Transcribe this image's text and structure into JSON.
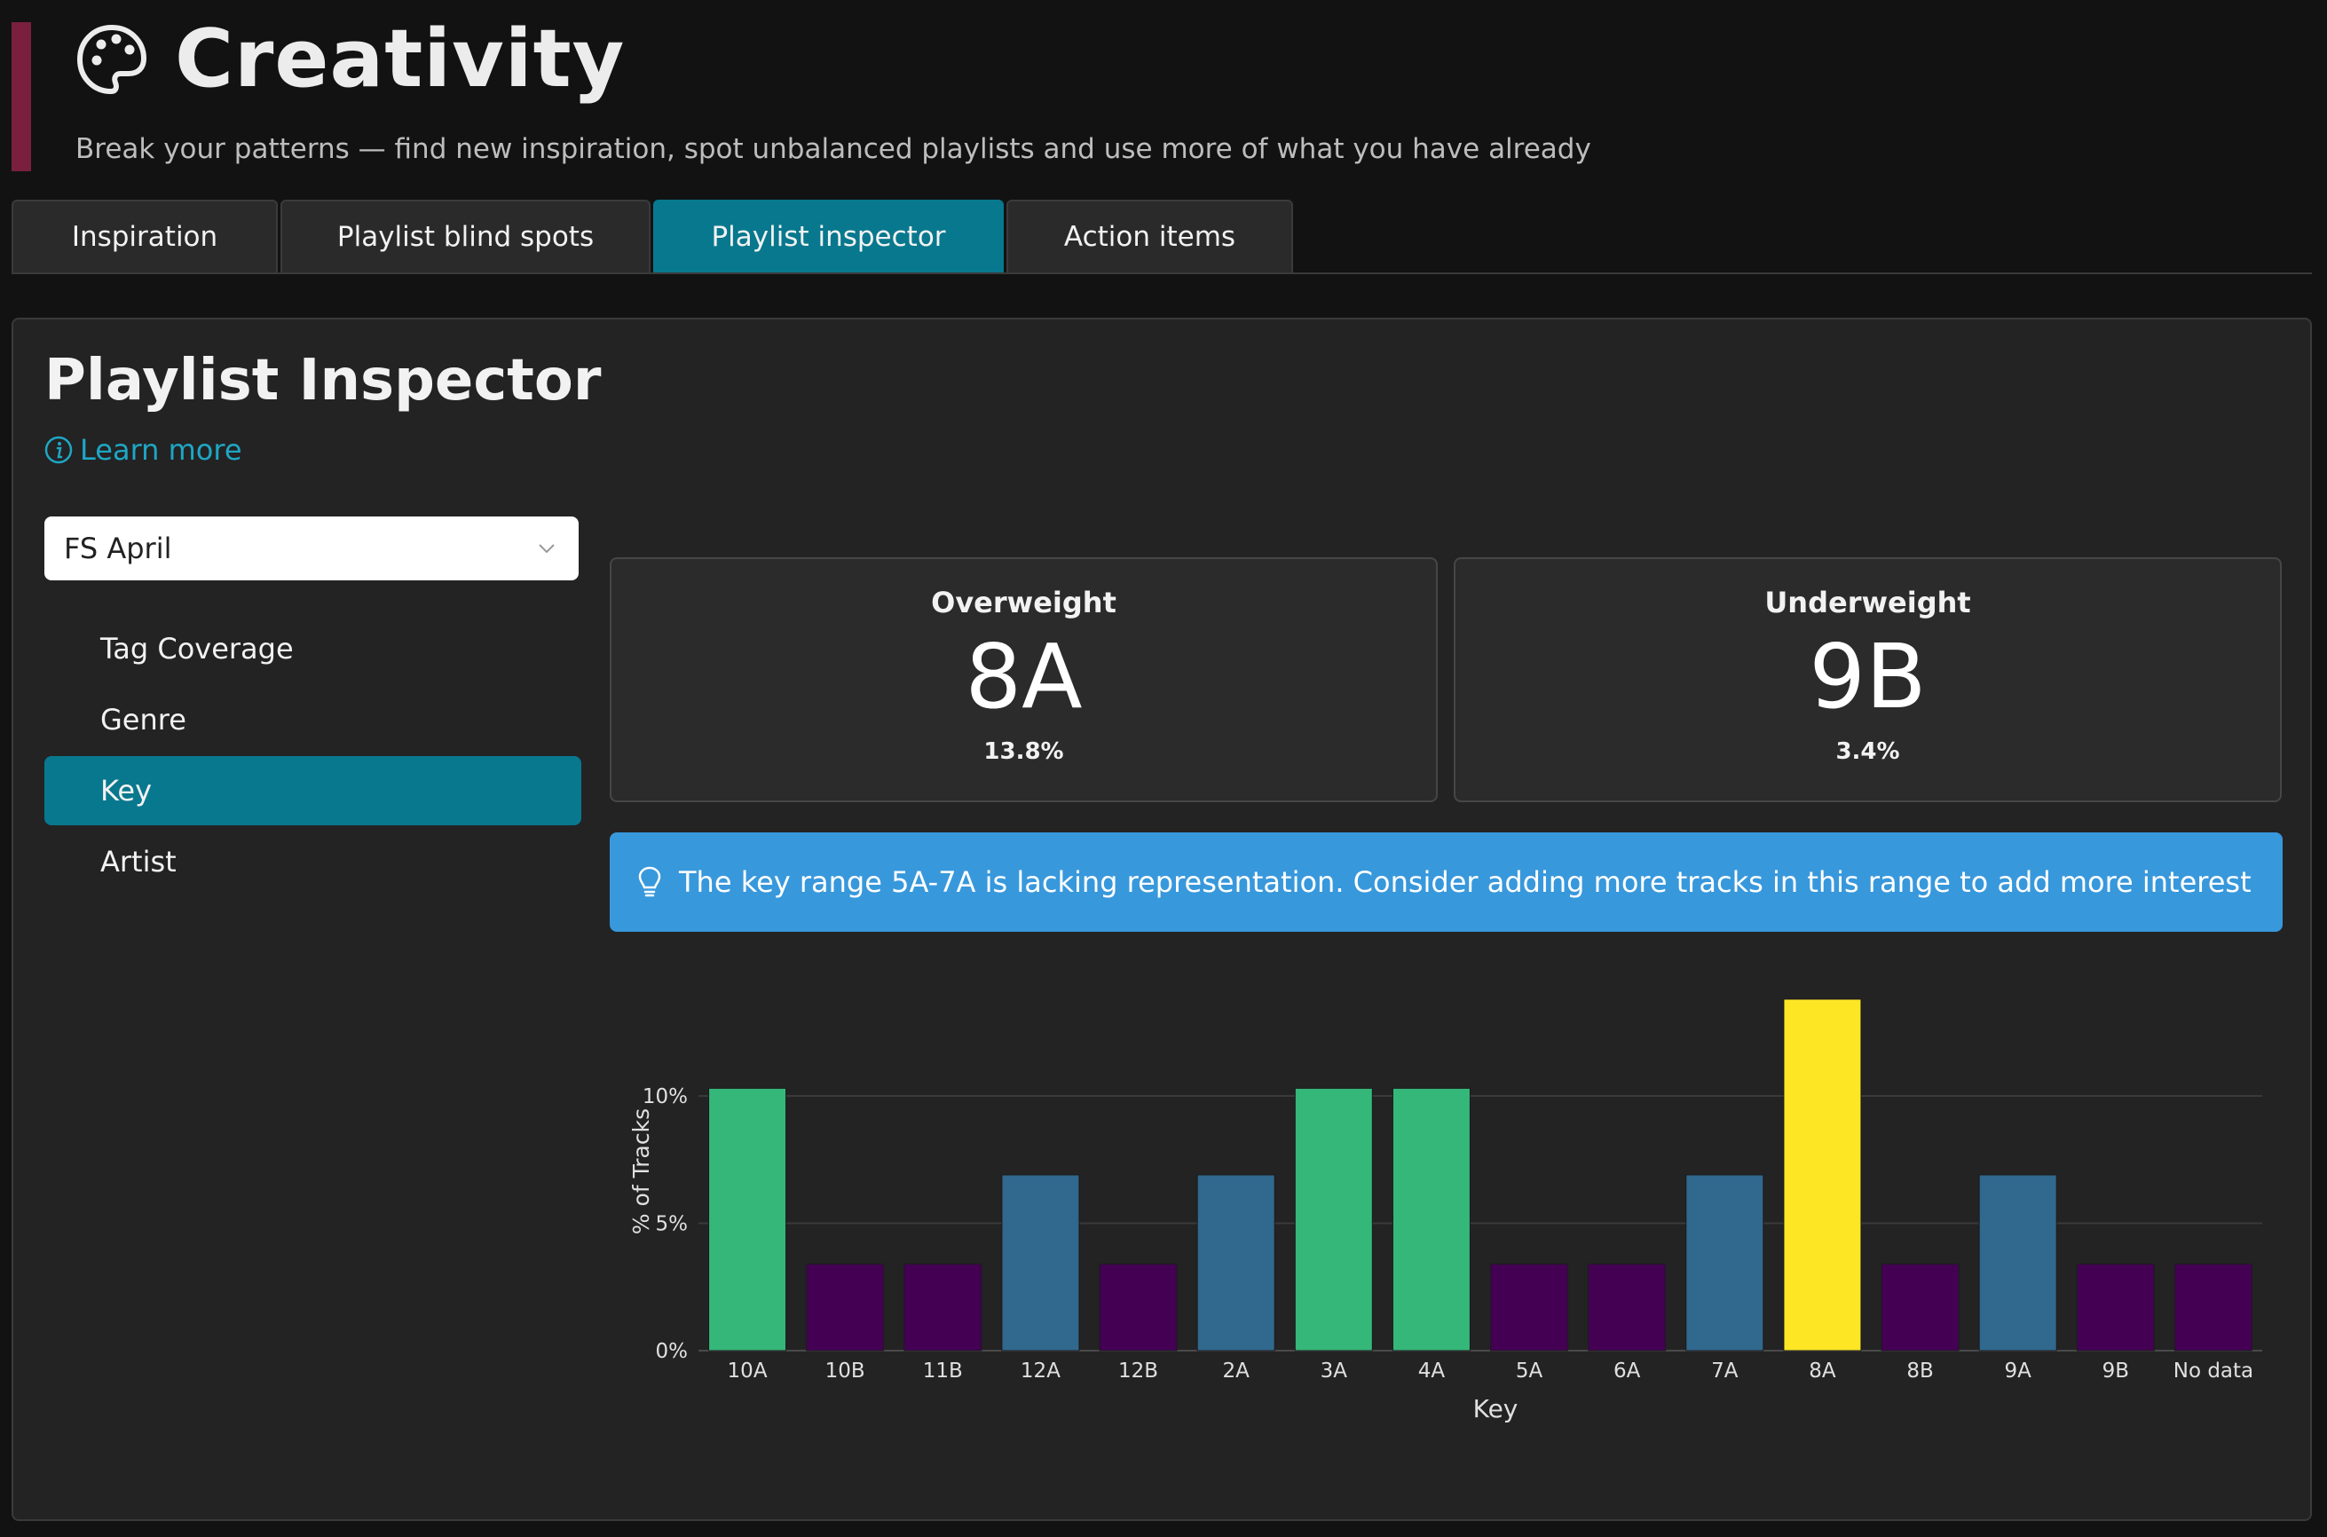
{
  "header": {
    "title": "Creativity",
    "subtitle": "Break your patterns — find new inspiration, spot unbalanced playlists and use more of what you have already"
  },
  "tabs": [
    {
      "label": "Inspiration",
      "active": false
    },
    {
      "label": "Playlist blind spots",
      "active": false
    },
    {
      "label": "Playlist inspector",
      "active": true
    },
    {
      "label": "Action items",
      "active": false
    }
  ],
  "panel": {
    "title": "Playlist Inspector",
    "learn_more": "Learn more",
    "playlist_select": {
      "value": "FS April"
    },
    "nav": [
      {
        "label": "Tag Coverage",
        "active": false
      },
      {
        "label": "Genre",
        "active": false
      },
      {
        "label": "Key",
        "active": true
      },
      {
        "label": "Artist",
        "active": false
      }
    ],
    "overweight": {
      "label": "Overweight",
      "value": "8A",
      "percent": "13.8%"
    },
    "underweight": {
      "label": "Underweight",
      "value": "9B",
      "percent": "3.4%"
    },
    "alert": "The key range 5A-7A is lacking representation. Consider adding more tracks in this range to add more interest"
  },
  "colors": {
    "accent": "#08788e",
    "alert": "#3898dc",
    "bar_green": "#35b779",
    "bar_purple": "#440154",
    "bar_blue": "#31688e",
    "bar_yellow": "#fde725"
  },
  "chart_data": {
    "type": "bar",
    "xlabel": "Key",
    "ylabel": "% of Tracks",
    "categories": [
      "10A",
      "10B",
      "11B",
      "12A",
      "12B",
      "2A",
      "3A",
      "4A",
      "5A",
      "6A",
      "7A",
      "8A",
      "8B",
      "9A",
      "9B",
      "No data"
    ],
    "values": [
      10.3,
      3.4,
      3.4,
      6.9,
      3.4,
      6.9,
      10.3,
      10.3,
      3.4,
      3.4,
      6.9,
      13.8,
      3.4,
      6.9,
      3.4,
      3.4
    ],
    "bar_colors": [
      "green",
      "purple",
      "purple",
      "blue",
      "purple",
      "blue",
      "green",
      "green",
      "purple",
      "purple",
      "blue",
      "yellow",
      "purple",
      "blue",
      "purple",
      "purple"
    ],
    "yticks": [
      "0%",
      "5%",
      "10%"
    ],
    "ylim": [
      0,
      14
    ],
    "grid": true
  }
}
